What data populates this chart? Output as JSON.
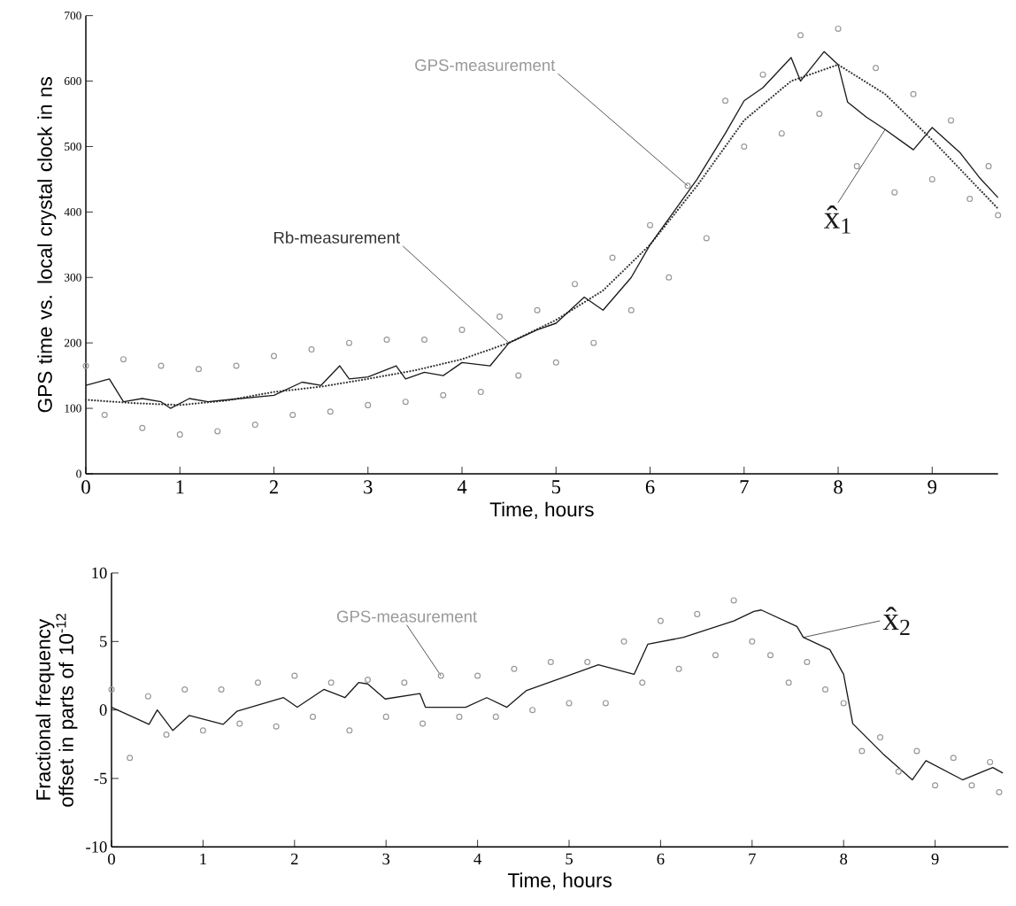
{
  "chart_data": [
    {
      "type": "line",
      "xlabel": "Time, hours",
      "ylabel": "GPS time vs. local crystal clock in ns",
      "xlim": [
        0,
        9.7
      ],
      "ylim": [
        0,
        700
      ],
      "xticks": [
        0,
        1,
        2,
        3,
        4,
        5,
        6,
        7,
        8,
        9
      ],
      "yticks": [
        0,
        100,
        200,
        300,
        400,
        500,
        600,
        700
      ],
      "series": [
        {
          "name": "GPS-measurement",
          "type": "scatter",
          "marker": "circle",
          "color": "#999999",
          "x": [
            0,
            0.2,
            0.4,
            0.6,
            0.8,
            1.0,
            1.2,
            1.4,
            1.6,
            1.8,
            2.0,
            2.2,
            2.4,
            2.6,
            2.8,
            3.0,
            3.2,
            3.4,
            3.6,
            3.8,
            4.0,
            4.2,
            4.4,
            4.6,
            4.8,
            5.0,
            5.2,
            5.4,
            5.6,
            5.8,
            6.0,
            6.2,
            6.4,
            6.6,
            6.8,
            7.0,
            7.2,
            7.4,
            7.6,
            7.8,
            8.0,
            8.2,
            8.4,
            8.6,
            8.8,
            9.0,
            9.2,
            9.4,
            9.6,
            9.7
          ],
          "values": [
            165,
            90,
            175,
            70,
            165,
            60,
            160,
            65,
            165,
            75,
            180,
            90,
            190,
            95,
            200,
            105,
            205,
            110,
            205,
            120,
            220,
            125,
            240,
            150,
            250,
            170,
            290,
            200,
            330,
            250,
            380,
            300,
            440,
            360,
            570,
            500,
            610,
            520,
            670,
            550,
            680,
            470,
            620,
            430,
            580,
            450,
            540,
            420,
            470,
            395
          ]
        },
        {
          "name": "Rb-measurement",
          "type": "line",
          "line_style": "dotted",
          "color": "#333333",
          "x": [
            0,
            0.5,
            1,
            1.5,
            2,
            2.5,
            3,
            3.5,
            4,
            4.5,
            5,
            5.5,
            6,
            6.5,
            7,
            7.5,
            8,
            8.5,
            9,
            9.7
          ],
          "values": [
            113,
            108,
            105,
            112,
            125,
            133,
            145,
            158,
            175,
            200,
            235,
            280,
            350,
            440,
            540,
            600,
            625,
            580,
            510,
            405
          ]
        },
        {
          "name": "x̂$_{1}$",
          "type": "line",
          "line_style": "solid",
          "color": "#1a1a1a",
          "x": [
            0,
            0.25,
            0.4,
            0.6,
            0.8,
            0.9,
            1.1,
            1.3,
            1.5,
            2,
            2.3,
            2.5,
            2.7,
            2.8,
            3,
            3.3,
            3.4,
            3.6,
            3.8,
            4,
            4.3,
            4.5,
            4.8,
            5,
            5.3,
            5.5,
            5.8,
            6,
            6.5,
            6.8,
            7,
            7.2,
            7.5,
            7.6,
            7.85,
            8.0,
            8.1,
            8.3,
            8.5,
            8.8,
            9,
            9.3,
            9.5,
            9.7
          ],
          "values": [
            135,
            145,
            110,
            115,
            110,
            100,
            115,
            110,
            113,
            120,
            140,
            135,
            165,
            145,
            148,
            165,
            145,
            155,
            150,
            170,
            165,
            200,
            220,
            230,
            270,
            250,
            300,
            350,
            450,
            520,
            570,
            590,
            636,
            600,
            645,
            625,
            568,
            545,
            526,
            495,
            529,
            490,
            453,
            422
          ]
        }
      ]
    },
    {
      "type": "line",
      "xlabel": "Time, hours",
      "ylabel": "Fractional frequency offset in parts of 10$^{-12}$",
      "xlim": [
        0,
        9.8
      ],
      "ylim": [
        -10,
        10
      ],
      "xticks": [
        0,
        1,
        2,
        3,
        4,
        5,
        6,
        7,
        8,
        9
      ],
      "yticks": [
        -10,
        -5,
        0,
        5,
        10
      ],
      "series": [
        {
          "name": "GPS-measurement",
          "type": "scatter",
          "marker": "circle",
          "color": "#999999",
          "x": [
            0,
            0.2,
            0.4,
            0.6,
            0.8,
            1.0,
            1.2,
            1.4,
            1.6,
            1.8,
            2.0,
            2.2,
            2.4,
            2.6,
            2.8,
            3.0,
            3.2,
            3.4,
            3.6,
            3.8,
            4.0,
            4.2,
            4.4,
            4.6,
            4.8,
            5.0,
            5.2,
            5.4,
            5.6,
            5.8,
            6.0,
            6.2,
            6.4,
            6.6,
            6.8,
            7.0,
            7.2,
            7.4,
            7.6,
            7.8,
            8.0,
            8.2,
            8.4,
            8.6,
            8.8,
            9.0,
            9.2,
            9.4,
            9.6,
            9.7
          ],
          "values": [
            1.5,
            -3.5,
            1,
            -1.8,
            1.5,
            -1.5,
            1.5,
            -1,
            2,
            -1.2,
            2.5,
            -0.5,
            2,
            -1.5,
            2.2,
            -0.5,
            2,
            -1,
            2.5,
            -0.5,
            2.5,
            -0.5,
            3,
            0,
            3.5,
            0.5,
            3.5,
            0.5,
            5,
            2,
            6.5,
            3,
            7,
            4,
            8,
            5,
            4,
            2,
            3.5,
            1.5,
            0.5,
            -3,
            -2,
            -4.5,
            -3,
            -5.5,
            -3.5,
            -5.5,
            -3.8,
            -6
          ]
        },
        {
          "name": "x̂$_{2}$",
          "type": "line",
          "line_style": "solid",
          "color": "#1a1a1a",
          "x": [
            0,
            0.41,
            0.5,
            0.67,
            0.85,
            1.22,
            1.37,
            1.88,
            2.03,
            2.32,
            2.55,
            2.7,
            2.8,
            2.99,
            3.37,
            3.43,
            3.87,
            4.1,
            4.32,
            4.53,
            5.32,
            5.71,
            5.86,
            6.25,
            6.8,
            7.02,
            7.1,
            7.49,
            7.56,
            7.85,
            8.0,
            8.1,
            8.43,
            8.75,
            8.9,
            9.3,
            9.63,
            9.74
          ],
          "values": [
            0.2,
            -1.05,
            0,
            -1.5,
            -0.4,
            -1.05,
            -0.1,
            0.9,
            0.2,
            1.5,
            0.9,
            2.0,
            1.9,
            0.8,
            1.2,
            0.2,
            0.2,
            0.9,
            0.2,
            1.4,
            3.3,
            2.6,
            4.8,
            5.3,
            6.5,
            7.2,
            7.3,
            6.1,
            5.3,
            4.4,
            2.6,
            -1.0,
            -3.2,
            -5.1,
            -3.7,
            -5.1,
            -4.2,
            -4.6
          ]
        }
      ]
    }
  ]
}
